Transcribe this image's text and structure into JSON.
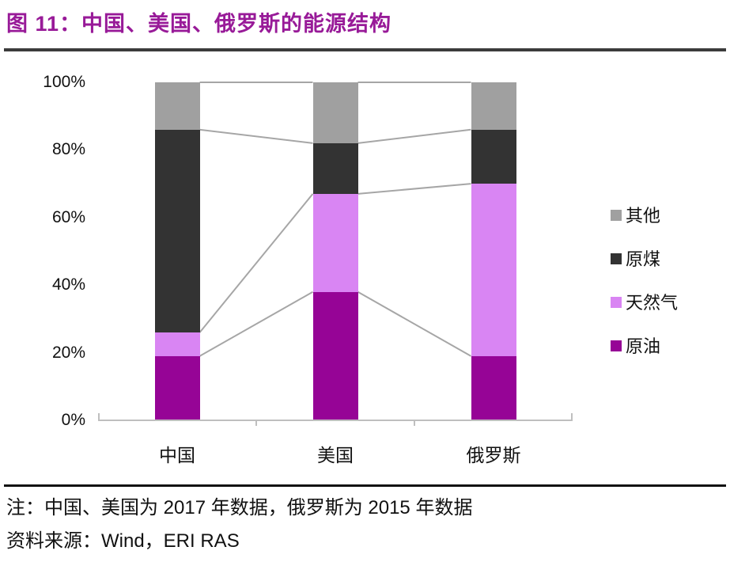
{
  "header": {
    "title": "图 11：中国、美国、俄罗斯的能源结构"
  },
  "chart_data": {
    "type": "bar",
    "stacked": true,
    "percent_stacked": true,
    "title": "中国、美国、俄罗斯的能源结构",
    "categories": [
      "中国",
      "美国",
      "俄罗斯"
    ],
    "series": [
      {
        "name": "原油",
        "color": "#960496",
        "values": [
          19,
          38,
          19
        ]
      },
      {
        "name": "天然气",
        "color": "#d985f3",
        "values": [
          7,
          29,
          51
        ]
      },
      {
        "name": "原煤",
        "color": "#333333",
        "values": [
          60,
          15,
          16
        ]
      },
      {
        "name": "其他",
        "color": "#a0a0a0",
        "values": [
          14,
          18,
          14
        ]
      }
    ],
    "ylim": [
      0,
      100
    ],
    "yticks": [
      "0%",
      "20%",
      "40%",
      "60%",
      "80%",
      "100%"
    ],
    "xlabel": "",
    "ylabel": "",
    "grid": false,
    "legend_position": "right",
    "legend_order": [
      "其他",
      "原煤",
      "天然气",
      "原油"
    ],
    "connector_lines": true
  },
  "footer": {
    "note": "注：中国、美国为 2017 年数据，俄罗斯为 2015 年数据",
    "source": "资料来源：Wind，ERI RAS"
  },
  "colors": {
    "title_text": "#981a98",
    "connector_line": "#a6a6a6",
    "axis_line": "#bfbfbf",
    "top_rule": "#3b3b3b",
    "bottom_rule": "#111111",
    "text": "#111111"
  }
}
